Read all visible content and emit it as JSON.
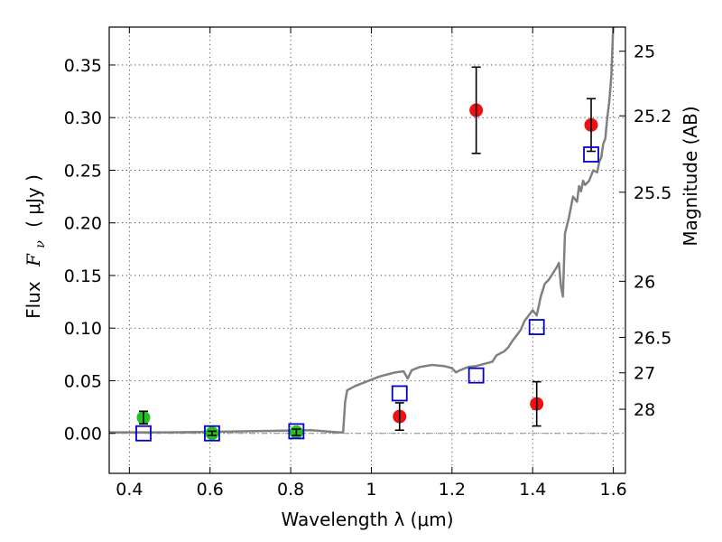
{
  "chart_data": {
    "type": "scatter",
    "xlabel": "Wavelength  λ (μm)",
    "ylabel_parts": [
      "Flux",
      "F",
      "ν",
      "( μJy )"
    ],
    "y2label": "Magnitude (AB)",
    "xlim": [
      0.35,
      1.63
    ],
    "ylim": [
      -0.038,
      0.386
    ],
    "grid": true,
    "x_ticks": [
      {
        "value": 0.4,
        "label": "0.4"
      },
      {
        "value": 0.6,
        "label": "0.6"
      },
      {
        "value": 0.8,
        "label": "0.8"
      },
      {
        "value": 1.0,
        "label": "1"
      },
      {
        "value": 1.2,
        "label": "1.2"
      },
      {
        "value": 1.4,
        "label": "1.4"
      },
      {
        "value": 1.6,
        "label": "1.6"
      }
    ],
    "y_ticks": [
      {
        "value": 0.0,
        "label": "0.00"
      },
      {
        "value": 0.05,
        "label": "0.05"
      },
      {
        "value": 0.1,
        "label": "0.10"
      },
      {
        "value": 0.15,
        "label": "0.15"
      },
      {
        "value": 0.2,
        "label": "0.20"
      },
      {
        "value": 0.25,
        "label": "0.25"
      },
      {
        "value": 0.3,
        "label": "0.30"
      },
      {
        "value": 0.35,
        "label": "0.35"
      }
    ],
    "y2_ticks": [
      {
        "flux": 0.3631,
        "label": "25"
      },
      {
        "flux": 0.3017,
        "label": "25.2"
      },
      {
        "flux": 0.2291,
        "label": "25.5"
      },
      {
        "flux": 0.1445,
        "label": "26"
      },
      {
        "flux": 0.0912,
        "label": "26.5"
      },
      {
        "flux": 0.0575,
        "label": "27"
      },
      {
        "flux": 0.0229,
        "label": "28"
      }
    ],
    "series": [
      {
        "kind": "line",
        "color": "#808080",
        "x": [
          0.35,
          0.5,
          0.7,
          0.85,
          0.92,
          0.93,
          0.935,
          0.94,
          0.96,
          0.98,
          1.0,
          1.02,
          1.04,
          1.06,
          1.08,
          1.09,
          1.1,
          1.12,
          1.15,
          1.18,
          1.2,
          1.21,
          1.22,
          1.24,
          1.26,
          1.28,
          1.3,
          1.31,
          1.33,
          1.34,
          1.35,
          1.37,
          1.38,
          1.39,
          1.4,
          1.41,
          1.42,
          1.43,
          1.44,
          1.45,
          1.46,
          1.465,
          1.47,
          1.475,
          1.48,
          1.49,
          1.5,
          1.51,
          1.515,
          1.52,
          1.525,
          1.53,
          1.54,
          1.55,
          1.56,
          1.565,
          1.57,
          1.575,
          1.58,
          1.585,
          1.59,
          1.595,
          1.6
        ],
        "y": [
          0.001,
          0.001,
          0.002,
          0.003,
          0.001,
          0.001,
          0.03,
          0.041,
          0.045,
          0.048,
          0.051,
          0.054,
          0.056,
          0.058,
          0.059,
          0.052,
          0.06,
          0.063,
          0.065,
          0.064,
          0.062,
          0.058,
          0.06,
          0.063,
          0.064,
          0.066,
          0.068,
          0.074,
          0.078,
          0.082,
          0.088,
          0.098,
          0.107,
          0.112,
          0.117,
          0.112,
          0.13,
          0.142,
          0.146,
          0.152,
          0.158,
          0.162,
          0.14,
          0.13,
          0.19,
          0.205,
          0.225,
          0.22,
          0.235,
          0.23,
          0.24,
          0.236,
          0.24,
          0.25,
          0.248,
          0.258,
          0.262,
          0.275,
          0.28,
          0.3,
          0.315,
          0.34,
          0.39
        ]
      },
      {
        "kind": "points",
        "marker": "circle",
        "color": "#22c022",
        "errorbars": true,
        "points": [
          {
            "x": 0.435,
            "y": 0.015,
            "err": 0.006
          },
          {
            "x": 0.605,
            "y": 0.0,
            "err": 0.002
          },
          {
            "x": 0.814,
            "y": 0.001,
            "err": 0.003
          }
        ]
      },
      {
        "kind": "points",
        "marker": "circle",
        "color": "#ee1111",
        "errorbars": true,
        "points": [
          {
            "x": 1.07,
            "y": 0.016,
            "err": 0.013
          },
          {
            "x": 1.26,
            "y": 0.307,
            "err": 0.041
          },
          {
            "x": 1.41,
            "y": 0.028,
            "err": 0.021
          },
          {
            "x": 1.545,
            "y": 0.293,
            "err": 0.025
          }
        ]
      },
      {
        "kind": "points",
        "marker": "square",
        "color": "#0000cc",
        "points": [
          {
            "x": 0.435,
            "y": 0.0
          },
          {
            "x": 0.605,
            "y": 0.0
          },
          {
            "x": 0.814,
            "y": 0.002
          },
          {
            "x": 1.07,
            "y": 0.038
          },
          {
            "x": 1.26,
            "y": 0.055
          },
          {
            "x": 1.41,
            "y": 0.101
          },
          {
            "x": 1.545,
            "y": 0.265
          }
        ]
      }
    ],
    "baseline": {
      "y": 0.0,
      "style": "dash-dot",
      "color": "#888888"
    }
  }
}
